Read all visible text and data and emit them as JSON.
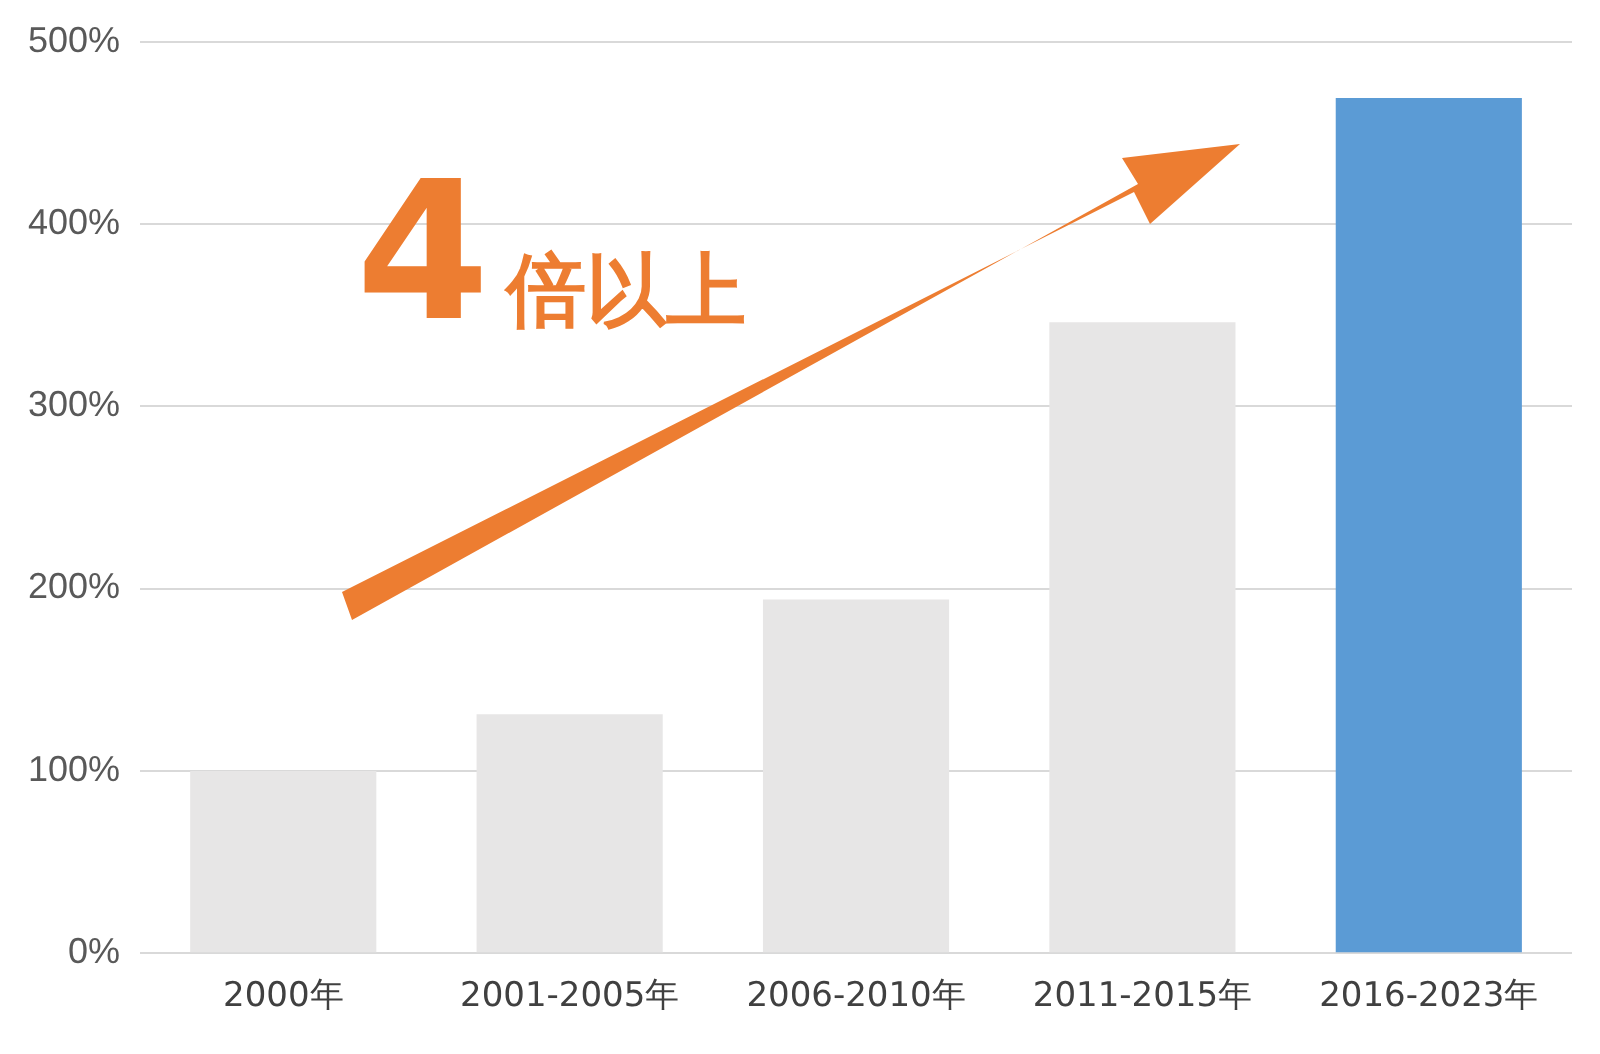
{
  "chart_data": {
    "type": "bar",
    "categories": [
      "2000年",
      "2001-2005年",
      "2006-2010年",
      "2011-2015年",
      "2016-2023年"
    ],
    "values": [
      100,
      131,
      194,
      346,
      469
    ],
    "colors": [
      "#e7e6e6",
      "#e7e6e6",
      "#e7e6e6",
      "#e7e6e6",
      "#5b9bd5"
    ],
    "ylim": [
      0,
      500
    ],
    "yticks": [
      {
        "value": 0,
        "label": "0%"
      },
      {
        "value": 100,
        "label": "100%"
      },
      {
        "value": 200,
        "label": "200%"
      },
      {
        "value": 300,
        "label": "300%"
      },
      {
        "value": 400,
        "label": "400%"
      },
      {
        "value": 500,
        "label": "500%"
      }
    ],
    "grid": "y",
    "annotations": [
      "4倍以上"
    ]
  }
}
